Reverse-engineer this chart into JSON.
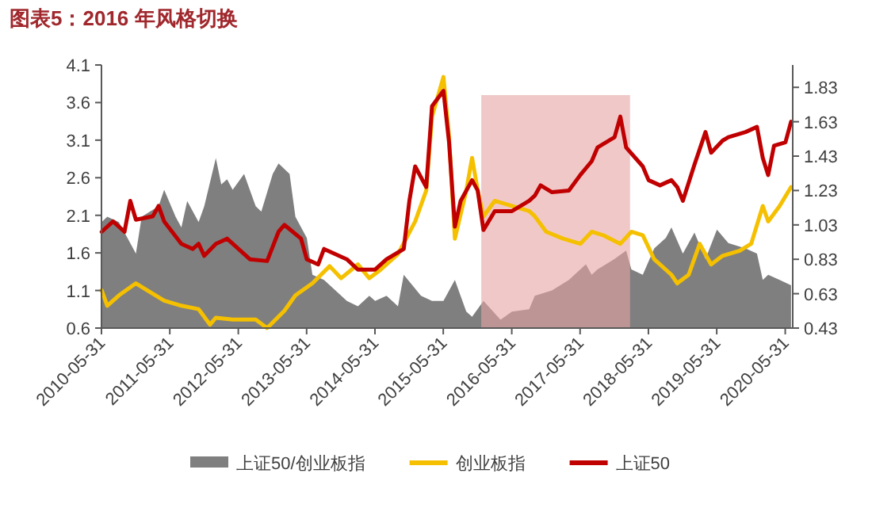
{
  "chart_data": {
    "type": "line",
    "title": "图表5：2016 年风格切换",
    "xlim": [
      "2010-05-31",
      "2020-07-10"
    ],
    "xticks": [
      "2010-05-31",
      "2011-05-31",
      "2012-05-31",
      "2013-05-31",
      "2014-05-31",
      "2015-05-31",
      "2016-05-31",
      "2017-05-31",
      "2018-05-31",
      "2019-05-31",
      "2020-05-31"
    ],
    "ylim": [
      0.6,
      4.1
    ],
    "yticks": [
      0.6,
      1.1,
      1.6,
      2.1,
      2.6,
      3.1,
      3.6,
      4.1
    ],
    "y2lim": [
      0.43,
      1.96
    ],
    "y2ticks": [
      0.43,
      0.63,
      0.83,
      1.03,
      1.23,
      1.43,
      1.63,
      1.83
    ],
    "grid": false,
    "legend": "bottom",
    "bands": [
      {
        "axis": "x",
        "from": "2015-12-20",
        "to": "2018-02-22",
        "color": "#e8a3a3"
      }
    ],
    "series": [
      {
        "name": "上证50/创业板指",
        "type": "area",
        "color": "#7f7f7f",
        "x": [
          "2010-06",
          "2010-07",
          "2010-09",
          "2010-12",
          "2011-01",
          "2011-04",
          "2011-05",
          "2011-07",
          "2011-08",
          "2011-09",
          "2011-11",
          "2011-12",
          "2012-02",
          "2012-03",
          "2012-04",
          "2012-05",
          "2012-07",
          "2012-09",
          "2012-10",
          "2012-12",
          "2013-01",
          "2013-03",
          "2013-04",
          "2013-06",
          "2013-07",
          "2013-09",
          "2013-11",
          "2014-01",
          "2014-03",
          "2014-05",
          "2014-06",
          "2014-08",
          "2014-10",
          "2014-11",
          "2015-02",
          "2015-04",
          "2015-06",
          "2015-08",
          "2015-10",
          "2015-11",
          "2016-01",
          "2016-04",
          "2016-06",
          "2016-09",
          "2016-10",
          "2017-01",
          "2017-04",
          "2017-07",
          "2017-08",
          "2017-09",
          "2017-12",
          "2018-02",
          "2018-03",
          "2018-05",
          "2018-07",
          "2018-09",
          "2018-10",
          "2018-12",
          "2019-02",
          "2019-04",
          "2019-06",
          "2019-08",
          "2019-11",
          "2020-01",
          "2020-02",
          "2020-03",
          "2020-05",
          "2020-07"
        ],
        "values": [
          2.01,
          2.08,
          2.01,
          1.59,
          2.08,
          2.22,
          2.44,
          2.08,
          1.94,
          2.29,
          2.01,
          2.22,
          2.86,
          2.51,
          2.58,
          2.44,
          2.65,
          2.22,
          2.15,
          2.65,
          2.79,
          2.65,
          2.08,
          1.8,
          1.31,
          1.24,
          1.1,
          0.96,
          0.89,
          1.03,
          0.96,
          1.03,
          0.89,
          1.31,
          1.03,
          0.96,
          0.96,
          1.24,
          0.82,
          0.75,
          0.96,
          0.71,
          0.82,
          0.85,
          1.03,
          1.1,
          1.24,
          1.45,
          1.31,
          1.38,
          1.52,
          1.63,
          1.38,
          1.31,
          1.66,
          1.8,
          1.94,
          1.59,
          1.87,
          1.52,
          1.91,
          1.73,
          1.66,
          1.59,
          1.24,
          1.31,
          1.24,
          1.17
        ]
      },
      {
        "name": "创业板指",
        "axis": "y2",
        "color": "#f5c000",
        "x": [
          "2010-06",
          "2010-07",
          "2010-09",
          "2010-12",
          "2011-03",
          "2011-05",
          "2011-08",
          "2011-11",
          "2012-01",
          "2012-02",
          "2012-05",
          "2012-09",
          "2012-11",
          "2013-02",
          "2013-04",
          "2013-07",
          "2013-10",
          "2013-12",
          "2014-03",
          "2014-05",
          "2014-07",
          "2014-10",
          "2015-01",
          "2015-03",
          "2015-04",
          "2015-06",
          "2015-07",
          "2015-08",
          "2015-10",
          "2015-11",
          "2015-12",
          "2016-01",
          "2016-03",
          "2016-06",
          "2016-09",
          "2016-10",
          "2016-12",
          "2017-03",
          "2017-06",
          "2017-08",
          "2017-10",
          "2018-01",
          "2018-03",
          "2018-05",
          "2018-07",
          "2018-10",
          "2018-11",
          "2019-01",
          "2019-03",
          "2019-05",
          "2019-07",
          "2019-10",
          "2019-12",
          "2020-02",
          "2020-03",
          "2020-05",
          "2020-07"
        ],
        "values": [
          0.65,
          0.56,
          0.62,
          0.69,
          0.63,
          0.59,
          0.56,
          0.54,
          0.45,
          0.49,
          0.48,
          0.48,
          0.43,
          0.53,
          0.62,
          0.69,
          0.79,
          0.72,
          0.8,
          0.72,
          0.77,
          0.86,
          1.05,
          1.23,
          1.66,
          1.89,
          1.54,
          0.95,
          1.23,
          1.42,
          1.23,
          1.08,
          1.17,
          1.14,
          1.11,
          1.08,
          0.99,
          0.95,
          0.92,
          0.99,
          0.97,
          0.92,
          0.99,
          0.97,
          0.83,
          0.74,
          0.69,
          0.74,
          0.92,
          0.8,
          0.85,
          0.88,
          0.92,
          1.14,
          1.05,
          1.14,
          1.25
        ]
      },
      {
        "name": "上证50",
        "axis": "y2",
        "color": "#c00000",
        "x": [
          "2010-06",
          "2010-08",
          "2010-10",
          "2010-11",
          "2010-12",
          "2011-03",
          "2011-04",
          "2011-05",
          "2011-08",
          "2011-10",
          "2011-11",
          "2011-12",
          "2012-02",
          "2012-04",
          "2012-06",
          "2012-08",
          "2012-11",
          "2013-01",
          "2013-02",
          "2013-05",
          "2013-06",
          "2013-08",
          "2013-09",
          "2014-01",
          "2014-03",
          "2014-06",
          "2014-08",
          "2014-11",
          "2014-12",
          "2015-01",
          "2015-03",
          "2015-04",
          "2015-06",
          "2015-07",
          "2015-08",
          "2015-09",
          "2015-11",
          "2015-12",
          "2016-01",
          "2016-03",
          "2016-06",
          "2016-09",
          "2016-10",
          "2016-11",
          "2017-01",
          "2017-04",
          "2017-06",
          "2017-08",
          "2017-09",
          "2017-12",
          "2018-01",
          "2018-02",
          "2018-05",
          "2018-06",
          "2018-08",
          "2018-10",
          "2018-11",
          "2018-12",
          "2019-02",
          "2019-04",
          "2019-05",
          "2019-07",
          "2019-08",
          "2019-11",
          "2020-01",
          "2020-02",
          "2020-03",
          "2020-04",
          "2020-06",
          "2020-07"
        ],
        "values": [
          0.99,
          1.05,
          0.99,
          1.17,
          1.06,
          1.08,
          1.14,
          1.05,
          0.92,
          0.89,
          0.92,
          0.85,
          0.92,
          0.95,
          0.89,
          0.83,
          0.82,
          0.99,
          1.03,
          0.95,
          0.83,
          0.8,
          0.89,
          0.83,
          0.77,
          0.77,
          0.83,
          0.89,
          1.17,
          1.37,
          1.25,
          1.72,
          1.81,
          1.51,
          1.02,
          1.17,
          1.29,
          1.23,
          1.0,
          1.11,
          1.11,
          1.17,
          1.2,
          1.26,
          1.22,
          1.23,
          1.32,
          1.4,
          1.48,
          1.54,
          1.66,
          1.48,
          1.37,
          1.29,
          1.26,
          1.29,
          1.25,
          1.17,
          1.38,
          1.57,
          1.45,
          1.52,
          1.54,
          1.57,
          1.6,
          1.42,
          1.32,
          1.49,
          1.51,
          1.63
        ]
      }
    ]
  }
}
